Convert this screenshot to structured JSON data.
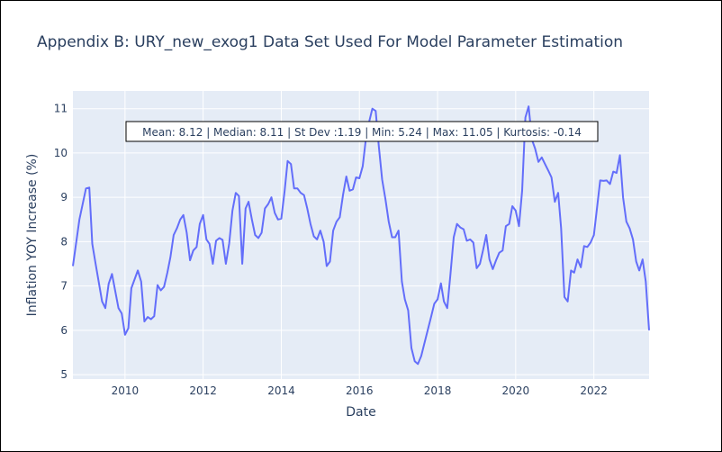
{
  "chart_data": {
    "type": "line",
    "title": "Appendix B: URY_new_exog1 Data Set Used For Model Parameter Estimation",
    "xlabel": "Date",
    "ylabel": "Inflation YOY Increase (%)",
    "annotation": "Mean: 8.12 | Median: 8.11 | St Dev :1.19 | Min: 5.24 | Max: 11.05 | Kurtosis: -0.14",
    "xlim": [
      "2008-09-01",
      "2023-06-01"
    ],
    "ylim": [
      4.9,
      11.4
    ],
    "x_ticks": [
      {
        "label": "2010",
        "value": "2010-01-01"
      },
      {
        "label": "2012",
        "value": "2012-01-01"
      },
      {
        "label": "2014",
        "value": "2014-01-01"
      },
      {
        "label": "2016",
        "value": "2016-01-01"
      },
      {
        "label": "2018",
        "value": "2018-01-01"
      },
      {
        "label": "2020",
        "value": "2020-01-01"
      },
      {
        "label": "2022",
        "value": "2022-01-01"
      }
    ],
    "y_ticks": [
      5,
      6,
      7,
      8,
      9,
      10,
      11
    ],
    "grid": true,
    "colors": {
      "line": "#636efa",
      "plot_bg": "#e5ecf6",
      "grid": "#ffffff",
      "text": "#2a3f5f"
    },
    "series": [
      {
        "x": [
          "2008-09",
          "2008-11",
          "2009-01",
          "2009-02",
          "2009-03",
          "2009-04",
          "2009-06",
          "2009-07",
          "2009-08",
          "2009-09",
          "2009-11",
          "2009-12",
          "2010-01",
          "2010-02",
          "2010-03",
          "2010-05",
          "2010-06",
          "2010-07",
          "2010-08",
          "2010-09",
          "2010-10",
          "2010-11",
          "2010-12",
          "2011-01",
          "2011-02",
          "2011-03",
          "2011-04",
          "2011-05",
          "2011-06",
          "2011-07",
          "2011-08",
          "2011-09",
          "2011-10",
          "2011-11",
          "2011-12",
          "2012-01",
          "2012-02",
          "2012-03",
          "2012-04",
          "2012-05",
          "2012-06",
          "2012-07",
          "2012-08",
          "2012-09",
          "2012-10",
          "2012-11",
          "2012-12",
          "2013-01",
          "2013-02",
          "2013-03",
          "2013-04",
          "2013-05",
          "2013-06",
          "2013-07",
          "2013-08",
          "2013-09",
          "2013-10",
          "2013-11",
          "2013-12",
          "2014-01",
          "2014-02",
          "2014-03",
          "2014-04",
          "2014-05",
          "2014-06",
          "2014-07",
          "2014-08",
          "2014-09",
          "2014-10",
          "2014-11",
          "2014-12",
          "2015-01",
          "2015-02",
          "2015-03",
          "2015-04",
          "2015-05",
          "2015-06",
          "2015-07",
          "2015-08",
          "2015-09",
          "2015-10",
          "2015-11",
          "2015-12",
          "2016-01",
          "2016-02",
          "2016-03",
          "2016-04",
          "2016-05",
          "2016-06",
          "2016-07",
          "2016-08",
          "2016-09",
          "2016-10",
          "2016-11",
          "2016-12",
          "2017-01",
          "2017-02",
          "2017-03",
          "2017-04",
          "2017-05",
          "2017-06",
          "2017-07",
          "2017-08",
          "2017-09",
          "2017-10",
          "2017-11",
          "2017-12",
          "2018-01",
          "2018-02",
          "2018-03",
          "2018-04",
          "2018-05",
          "2018-06",
          "2018-07",
          "2018-08",
          "2018-09",
          "2018-10",
          "2018-11",
          "2018-12",
          "2019-01",
          "2019-02",
          "2019-03",
          "2019-04",
          "2019-05",
          "2019-06",
          "2019-07",
          "2019-08",
          "2019-09",
          "2019-10",
          "2019-11",
          "2019-12",
          "2020-01",
          "2020-02",
          "2020-03",
          "2020-04",
          "2020-05",
          "2020-06",
          "2020-07",
          "2020-08",
          "2020-09",
          "2020-10",
          "2020-11",
          "2020-12",
          "2021-01",
          "2021-02",
          "2021-03",
          "2021-04",
          "2021-05",
          "2021-06",
          "2021-07",
          "2021-08",
          "2021-09",
          "2021-10",
          "2021-11",
          "2021-12",
          "2022-01",
          "2022-02",
          "2022-03",
          "2022-04",
          "2022-05",
          "2022-06",
          "2022-07",
          "2022-08",
          "2022-09",
          "2022-10",
          "2022-11",
          "2022-12",
          "2023-01",
          "2023-02",
          "2023-03",
          "2023-04",
          "2023-05",
          "2023-06"
        ],
        "y": [
          7.45,
          8.5,
          9.2,
          9.22,
          7.95,
          7.5,
          6.65,
          6.5,
          7.05,
          7.27,
          6.5,
          6.38,
          5.9,
          6.05,
          6.95,
          7.35,
          7.1,
          6.2,
          6.3,
          6.25,
          6.32,
          7.02,
          6.9,
          6.98,
          7.3,
          7.65,
          8.15,
          8.3,
          8.5,
          8.6,
          8.2,
          7.58,
          7.8,
          7.88,
          8.4,
          8.6,
          8.05,
          7.95,
          7.5,
          8.02,
          8.08,
          8.04,
          7.5,
          7.96,
          8.7,
          9.1,
          9.03,
          7.5,
          8.75,
          8.9,
          8.5,
          8.15,
          8.08,
          8.2,
          8.75,
          8.85,
          9.0,
          8.65,
          8.5,
          8.52,
          9.15,
          9.82,
          9.75,
          9.2,
          9.2,
          9.1,
          9.05,
          8.75,
          8.4,
          8.12,
          8.05,
          8.25,
          8.0,
          7.45,
          7.55,
          8.25,
          8.45,
          8.55,
          9.05,
          9.47,
          9.15,
          9.18,
          9.45,
          9.43,
          9.7,
          10.3,
          10.7,
          11.0,
          10.95,
          10.15,
          9.4,
          8.95,
          8.45,
          8.1,
          8.1,
          8.25,
          7.1,
          6.7,
          6.45,
          5.6,
          5.3,
          5.24,
          5.42,
          5.72,
          6.0,
          6.3,
          6.6,
          6.7,
          7.06,
          6.65,
          6.5,
          7.25,
          8.1,
          8.4,
          8.32,
          8.28,
          8.02,
          8.05,
          7.98,
          7.4,
          7.5,
          7.8,
          8.15,
          7.6,
          7.38,
          7.58,
          7.75,
          7.8,
          8.35,
          8.4,
          8.8,
          8.7,
          8.35,
          9.15,
          10.8,
          11.05,
          10.3,
          10.1,
          9.8,
          9.9,
          9.75,
          9.6,
          9.45,
          8.9,
          9.1,
          8.3,
          6.75,
          6.65,
          7.35,
          7.3,
          7.6,
          7.42,
          7.9,
          7.88,
          7.98,
          8.15,
          8.8,
          9.38,
          9.37,
          9.38,
          9.3,
          9.58,
          9.55,
          9.95,
          9.0,
          8.45,
          8.3,
          8.05,
          7.55,
          7.35,
          7.6,
          7.1,
          6.0
        ]
      }
    ]
  }
}
